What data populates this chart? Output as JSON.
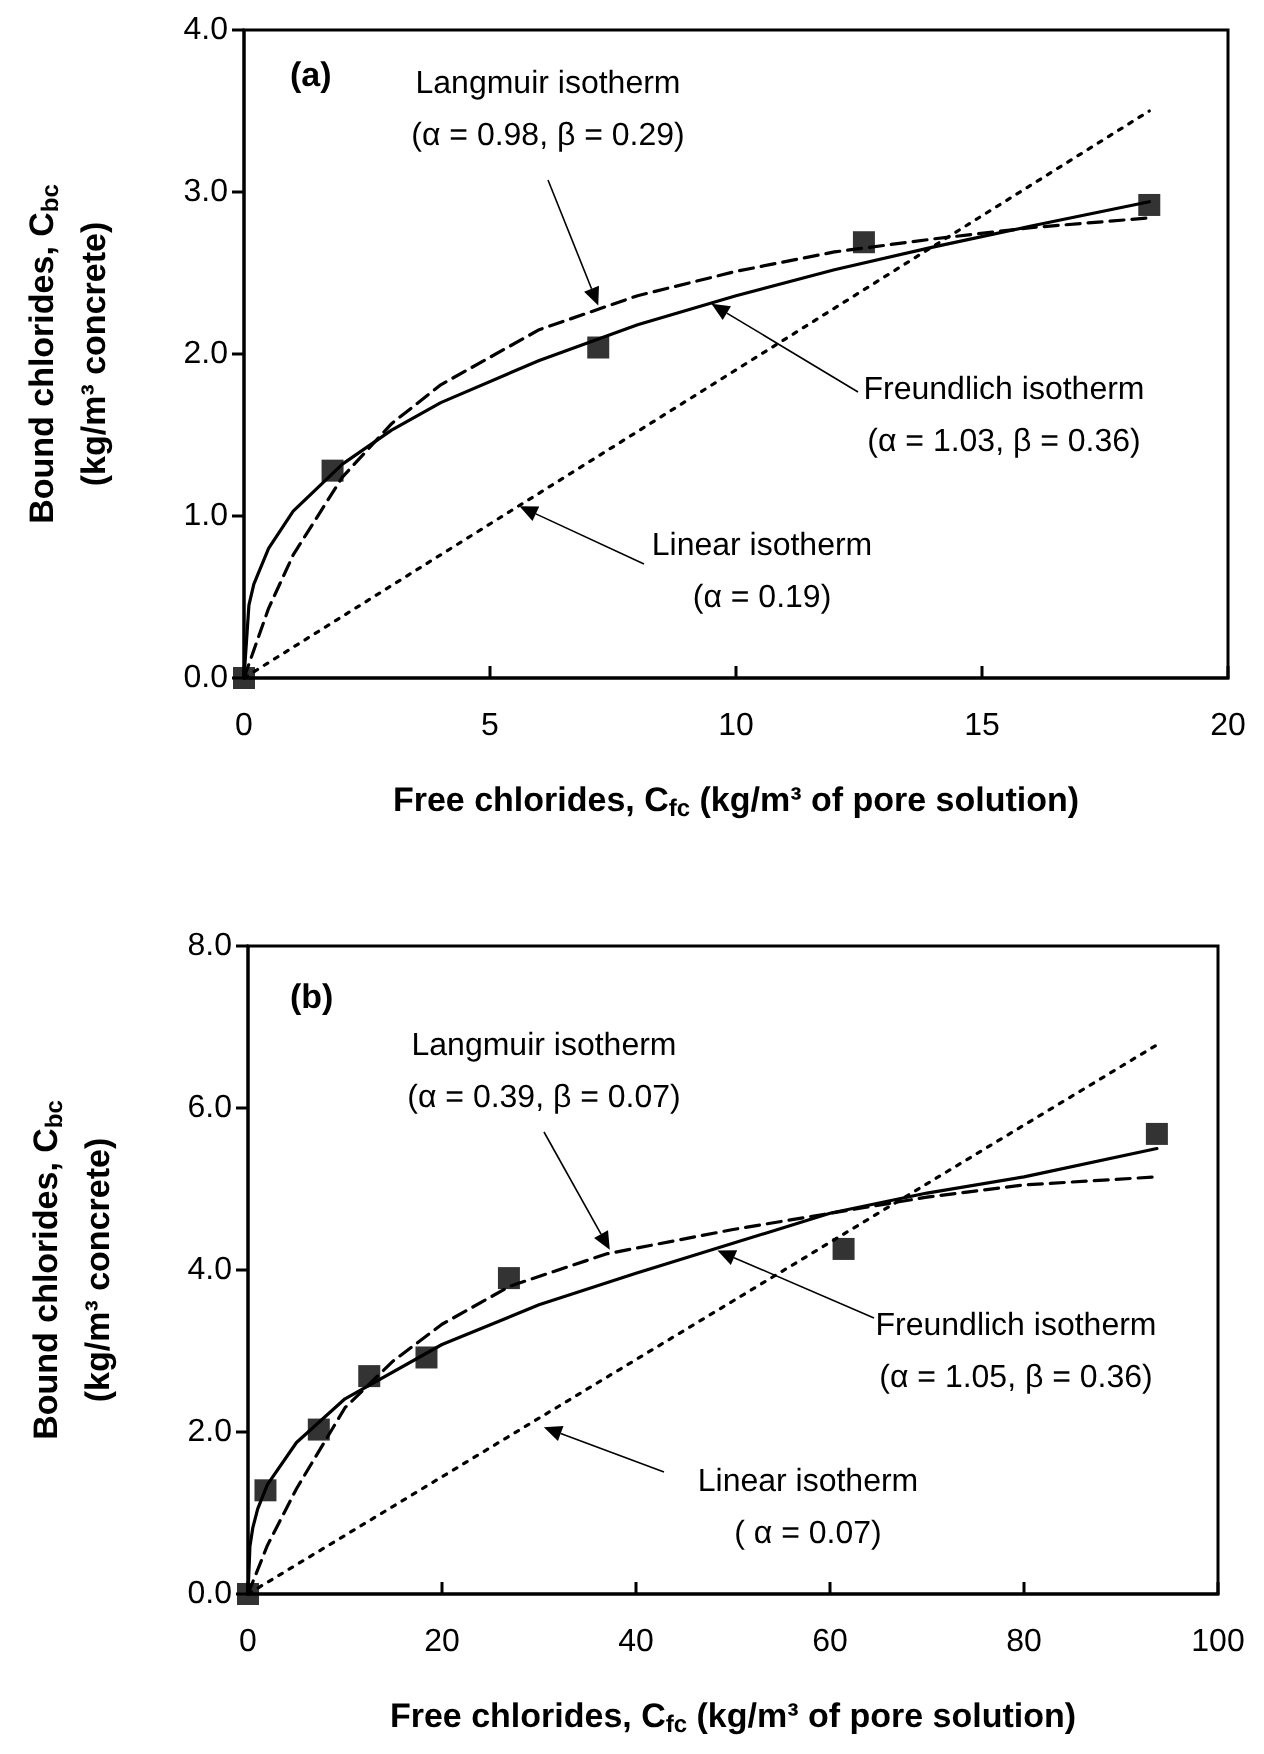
{
  "chart_data": [
    {
      "type": "scatter",
      "title": "(a)",
      "xlabel": "Free chlorides, C$_{fc}$ (kg/m³ of pore solution)",
      "ylabel": "Bound chlorides, C$_{bc}$\n(kg/m³ concrete)",
      "xlim": [
        0,
        20
      ],
      "xticks": [
        0,
        5,
        10,
        15,
        20
      ],
      "ylim": [
        0,
        4
      ],
      "yticks": [
        {
          "value": 0,
          "label": "0.0"
        },
        {
          "value": 1,
          "label": "1.0"
        },
        {
          "value": 2,
          "label": "2.0"
        },
        {
          "value": 3,
          "label": "3.0"
        },
        {
          "value": 4,
          "label": "4.0"
        }
      ],
      "series": [
        {
          "type": "scatter",
          "marker": "square",
          "color": "#000000",
          "x": [
            0,
            1.8,
            7.2,
            12.6,
            18.4
          ],
          "values": [
            0,
            1.28,
            2.04,
            2.69,
            2.92
          ]
        },
        {
          "type": "line",
          "marker": "none",
          "line_style": "dashed",
          "color": "#000000",
          "x": [
            0,
            0.5,
            1,
            2,
            3,
            4,
            6,
            8,
            10,
            12,
            14,
            16,
            18.4
          ],
          "values": [
            0,
            0.43,
            0.76,
            1.24,
            1.57,
            1.81,
            2.15,
            2.36,
            2.51,
            2.63,
            2.71,
            2.78,
            2.84
          ]
        },
        {
          "type": "line",
          "marker": "none",
          "line_style": "solid",
          "color": "#000000",
          "x": [
            0,
            0.1,
            0.2,
            0.5,
            1,
            2,
            3,
            4,
            6,
            8,
            10,
            12,
            14,
            16,
            18.4
          ],
          "values": [
            0,
            0.45,
            0.58,
            0.8,
            1.03,
            1.32,
            1.53,
            1.7,
            1.96,
            2.18,
            2.36,
            2.52,
            2.66,
            2.79,
            2.94
          ]
        },
        {
          "type": "line",
          "marker": "none",
          "line_style": "dotted",
          "color": "#000000",
          "x": [
            0,
            18.4
          ],
          "values": [
            0,
            3.5
          ]
        }
      ],
      "annotations": [
        {
          "text": "Langmuir isotherm\n(α = 0.98, β = 0.29)",
          "x": 7.2,
          "y": 2.3
        },
        {
          "text": "Freundlich isotherm\n(α = 1.03, β = 0.36)",
          "x": 9.5,
          "y": 2.31
        },
        {
          "text": "Linear isotherm\n(α = 0.19)",
          "x": 5.6,
          "y": 1.06
        }
      ]
    },
    {
      "type": "scatter",
      "title": "(b)",
      "xlabel": "Free chlorides, C$_{fc}$ (kg/m³ of pore solution)",
      "ylabel": "Bound chlorides, C$_{bc}$\n(kg/m³ concrete)",
      "xlim": [
        0,
        100
      ],
      "xticks": [
        0,
        20,
        40,
        60,
        80,
        100
      ],
      "ylim": [
        0,
        8
      ],
      "yticks": [
        {
          "value": 0,
          "label": "0.0"
        },
        {
          "value": 2,
          "label": "2.0"
        },
        {
          "value": 4,
          "label": "4.0"
        },
        {
          "value": 6,
          "label": "6.0"
        },
        {
          "value": 8,
          "label": "8.0"
        }
      ],
      "series": [
        {
          "type": "scatter",
          "marker": "square",
          "color": "#000000",
          "x": [
            0,
            1.8,
            7.3,
            12.5,
            18.4,
            26.9,
            61.4,
            93.7
          ],
          "values": [
            0,
            1.28,
            2.03,
            2.69,
            2.92,
            3.9,
            4.26,
            5.68
          ]
        },
        {
          "type": "line",
          "marker": "none",
          "line_style": "dashed",
          "color": "#000000",
          "x": [
            0,
            2,
            5,
            10,
            15,
            20,
            27,
            37,
            50,
            60,
            70,
            80,
            93.7
          ],
          "values": [
            0,
            0.6,
            1.3,
            2.3,
            2.88,
            3.33,
            3.8,
            4.2,
            4.5,
            4.7,
            4.9,
            5.05,
            5.15
          ]
        },
        {
          "type": "line",
          "marker": "none",
          "line_style": "solid",
          "color": "#000000",
          "x": [
            0,
            0.2,
            0.5,
            1,
            2,
            5,
            10,
            20,
            30,
            40,
            60,
            70,
            80,
            93.7
          ],
          "values": [
            0,
            0.59,
            0.82,
            1.05,
            1.35,
            1.87,
            2.41,
            3.08,
            3.57,
            3.96,
            4.7,
            4.95,
            5.15,
            5.5
          ]
        },
        {
          "type": "line",
          "marker": "none",
          "line_style": "dotted",
          "color": "#000000",
          "x": [
            0,
            93.7
          ],
          "values": [
            0,
            6.78
          ]
        }
      ],
      "annotations": [
        {
          "text": "Langmuir isotherm\n(α = 0.39, β = 0.07)",
          "x": 37.3,
          "y": 4.25
        },
        {
          "text": "Freundlich isotherm\n(α = 1.05, β = 0.36)",
          "x": 48.4,
          "y": 4.24
        },
        {
          "text": "Linear isotherm\n( α = 0.07)",
          "x": 30.5,
          "y": 2.06
        }
      ]
    }
  ]
}
